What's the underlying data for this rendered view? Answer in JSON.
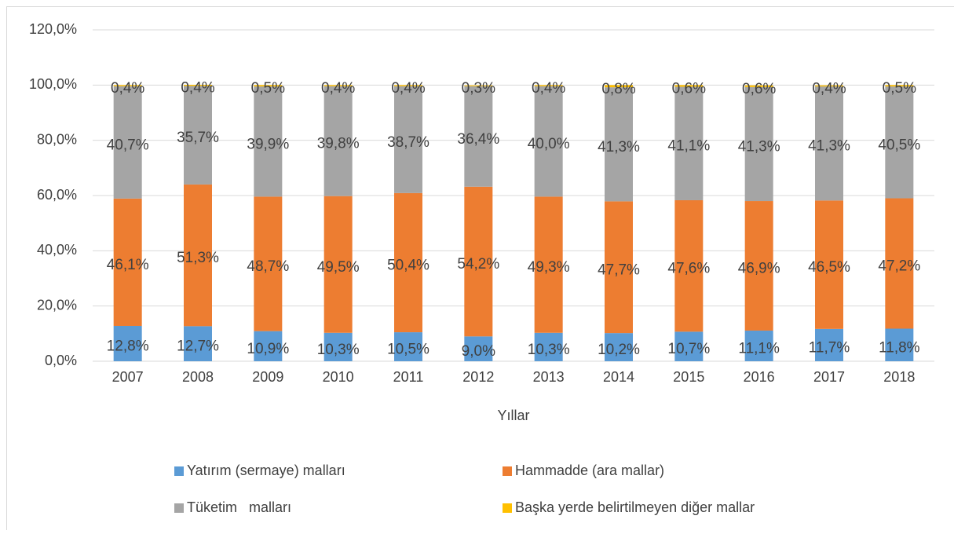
{
  "chart_data": {
    "type": "stacked_bar",
    "x_label": "Yıllar",
    "categories": [
      "2007",
      "2008",
      "2009",
      "2010",
      "2011",
      "2012",
      "2013",
      "2014",
      "2015",
      "2016",
      "2017",
      "2018"
    ],
    "series": [
      {
        "name": "Yatırım (sermaye) malları",
        "color": "#5b9bd5",
        "values": [
          12.8,
          12.7,
          10.9,
          10.3,
          10.5,
          9.0,
          10.3,
          10.2,
          10.7,
          11.1,
          11.7,
          11.8
        ],
        "value_labels": [
          "12,8%",
          "12,7%",
          "10,9%",
          "10,3%",
          "10,5%",
          "9,0%",
          "10,3%",
          "10,2%",
          "10,7%",
          "11,1%",
          "11,7%",
          "11,8%"
        ]
      },
      {
        "name": "Hammadde (ara mallar)",
        "color": "#ed7d31",
        "values": [
          46.1,
          51.3,
          48.7,
          49.5,
          50.4,
          54.2,
          49.3,
          47.7,
          47.6,
          46.9,
          46.5,
          47.2
        ],
        "value_labels": [
          "46,1%",
          "51,3%",
          "48,7%",
          "49,5%",
          "50,4%",
          "54,2%",
          "49,3%",
          "47,7%",
          "47,6%",
          "46,9%",
          "46,5%",
          "47,2%"
        ]
      },
      {
        "name": "Tüketim   malları",
        "color": "#a5a5a5",
        "values": [
          40.7,
          35.7,
          39.9,
          39.8,
          38.7,
          36.4,
          40.0,
          41.3,
          41.1,
          41.3,
          41.3,
          40.5
        ],
        "value_labels": [
          "40,7%",
          "35,7%",
          "39,9%",
          "39,8%",
          "38,7%",
          "36,4%",
          "40,0%",
          "41,3%",
          "41,1%",
          "41,3%",
          "41,3%",
          "40,5%"
        ]
      },
      {
        "name": "Başka yerde belirtilmeyen diğer mallar",
        "color": "#ffc000",
        "values": [
          0.4,
          0.4,
          0.5,
          0.4,
          0.4,
          0.3,
          0.4,
          0.8,
          0.6,
          0.6,
          0.4,
          0.5
        ],
        "value_labels": [
          "0,4%",
          "0,4%",
          "0,5%",
          "0,4%",
          "0,4%",
          "0,3%",
          "0,4%",
          "0,8%",
          "0,6%",
          "0,6%",
          "0,4%",
          "0,5%"
        ]
      }
    ],
    "ylim": [
      0,
      120
    ],
    "yticks": [
      {
        "value": 0,
        "label": "0,0%"
      },
      {
        "value": 20,
        "label": "20,0%"
      },
      {
        "value": 40,
        "label": "40,0%"
      },
      {
        "value": 60,
        "label": "60,0%"
      },
      {
        "value": 80,
        "label": "80,0%"
      },
      {
        "value": 100,
        "label": "100,0%"
      },
      {
        "value": 120,
        "label": "120,0%"
      }
    ],
    "grid": true
  }
}
